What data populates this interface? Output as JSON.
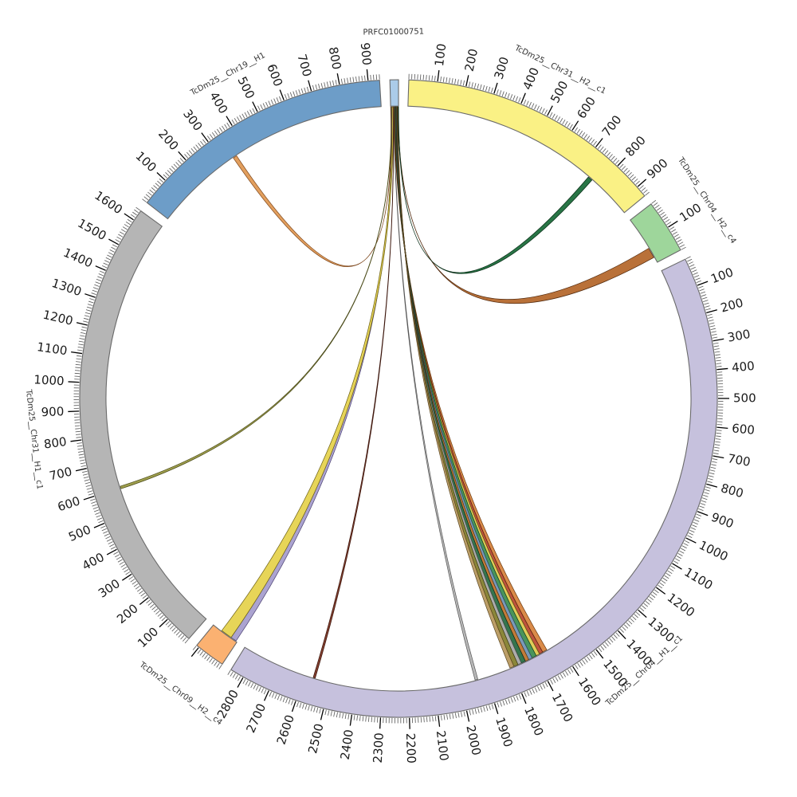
{
  "chart_data": {
    "type": "circos",
    "title": "",
    "layout": {
      "gap_degrees": 1.85,
      "start_bearing": 358.45,
      "minor_tick_units": 10,
      "major_tick_units": 100,
      "band_outer_radius": 400,
      "band_inner_radius": 367,
      "tick_label_radius": 420,
      "segment_label_radius": 460
    },
    "segments": [
      {
        "name": "PRFC01000751",
        "color": "#abcbe8",
        "border": "#6a6a6a",
        "length": 30,
        "ticks": false,
        "tick_labels": []
      },
      {
        "name": "TcDm25__Chr31__H2__c1",
        "color": "#faf185",
        "border": "#6a6a6a",
        "length": 940,
        "ticks": true,
        "tick_labels": [
          100,
          200,
          300,
          400,
          500,
          600,
          700,
          800,
          900
        ]
      },
      {
        "name": "TcDm25__Chr04__H2__c4",
        "color": "#9ed69b",
        "border": "#6a6a6a",
        "length": 190,
        "ticks": true,
        "tick_labels": [
          100
        ]
      },
      {
        "name": "TcDm25__Chr04__H1__c1",
        "color": "#c6c1dd",
        "border": "#6a6a6a",
        "length": 2850,
        "ticks": true,
        "tick_labels": [
          100,
          200,
          300,
          400,
          500,
          600,
          700,
          800,
          900,
          1000,
          1100,
          1200,
          1300,
          1400,
          1500,
          1600,
          1700,
          1800,
          1900,
          2000,
          2100,
          2200,
          2300,
          2400,
          2500,
          2600,
          2700,
          2800
        ]
      },
      {
        "name": "TcDm25__Chr09__H2__c4",
        "color": "#fbb171",
        "border": "#6a6a6a",
        "length": 110,
        "ticks": true,
        "tick_labels": []
      },
      {
        "name": "TcDm25__Chr31__H1__c1",
        "color": "#b5b5b5",
        "border": "#6a6a6a",
        "length": 1640,
        "ticks": true,
        "tick_labels": [
          100,
          200,
          300,
          400,
          500,
          600,
          700,
          800,
          900,
          1000,
          1100,
          1200,
          1300,
          1400,
          1500,
          1600
        ]
      },
      {
        "name": "TcDm25__Chr19__H1",
        "color": "#6d9dc8",
        "border": "#6a6a6a",
        "length": 940,
        "ticks": true,
        "tick_labels": [
          100,
          200,
          300,
          400,
          500,
          600,
          700,
          800,
          900
        ]
      }
    ],
    "links": [
      {
        "source": "PRFC01000751",
        "s0": 0.0,
        "s1": 1.6,
        "target": "TcDm25__Chr19__H1",
        "t0": 340,
        "t1": 355,
        "color": "#e09a55",
        "stroke": "#7a4318"
      },
      {
        "source": "PRFC01000751",
        "s0": 1.6,
        "s1": 2.6,
        "target": "TcDm25__Chr31__H1__c1",
        "t0": 596,
        "t1": 606,
        "color": "#9a9a45",
        "stroke": "#4a4a18"
      },
      {
        "source": "PRFC01000751",
        "s0": 2.6,
        "s1": 4.4,
        "target": "TcDm25__Chr09__H2__c4",
        "t0": 5,
        "t1": 28,
        "color": "#a79ecd",
        "stroke": "#4a4070"
      },
      {
        "source": "PRFC01000751",
        "s0": 4.4,
        "s1": 9.0,
        "target": "TcDm25__Chr09__H2__c4",
        "t0": 28,
        "t1": 72,
        "color": "#e6d34f",
        "stroke": "#6a5e14"
      },
      {
        "source": "PRFC01000751",
        "s0": 9.0,
        "s1": 9.8,
        "target": "TcDm25__Chr04__H1__c1",
        "t0": 2558,
        "t1": 2566,
        "color": "#7a3424",
        "stroke": "#3a140a"
      },
      {
        "source": "PRFC01000751",
        "s0": 9.8,
        "s1": 11.0,
        "target": "TcDm25__Chr04__H1__c1",
        "t0": 1933,
        "t1": 1944,
        "color": "#b4b4b4",
        "stroke": "#555555"
      },
      {
        "source": "PRFC01000751",
        "s0": 11.0,
        "s1": 12.6,
        "target": "TcDm25__Chr04__H1__c1",
        "t0": 1648,
        "t1": 1666,
        "color": "#d8853f",
        "stroke": "#6a3a10"
      },
      {
        "source": "PRFC01000751",
        "s0": 12.6,
        "s1": 14.2,
        "target": "TcDm25__Chr04__H1__c1",
        "t0": 1666,
        "t1": 1680,
        "color": "#bb4b33",
        "stroke": "#551a0e"
      },
      {
        "source": "PRFC01000751",
        "s0": 14.2,
        "s1": 15.8,
        "target": "TcDm25__Chr04__H1__c1",
        "t0": 1680,
        "t1": 1694,
        "color": "#ddca50",
        "stroke": "#5e5414"
      },
      {
        "source": "PRFC01000751",
        "s0": 15.8,
        "s1": 17.4,
        "target": "TcDm25__Chr04__H1__c1",
        "t0": 1694,
        "t1": 1712,
        "color": "#3f8e52",
        "stroke": "#10411f"
      },
      {
        "source": "PRFC01000751",
        "s0": 17.4,
        "s1": 19.0,
        "target": "TcDm25__Chr04__H1__c1",
        "t0": 1712,
        "t1": 1726,
        "color": "#7295b5",
        "stroke": "#2e4a63"
      },
      {
        "source": "PRFC01000751",
        "s0": 19.0,
        "s1": 20.6,
        "target": "TcDm25__Chr04__H1__c1",
        "t0": 1726,
        "t1": 1740,
        "color": "#c0742e",
        "stroke": "#5c330e"
      },
      {
        "source": "PRFC01000751",
        "s0": 20.6,
        "s1": 22.2,
        "target": "TcDm25__Chr04__H1__c1",
        "t0": 1740,
        "t1": 1757,
        "color": "#2a6e44",
        "stroke": "#0c2e1a"
      },
      {
        "source": "PRFC01000751",
        "s0": 22.2,
        "s1": 23.8,
        "target": "TcDm25__Chr04__H1__c1",
        "t0": 1757,
        "t1": 1771,
        "color": "#a8a8a8",
        "stroke": "#4d4d4d"
      },
      {
        "source": "PRFC01000751",
        "s0": 23.8,
        "s1": 25.4,
        "target": "TcDm25__Chr04__H1__c1",
        "t0": 1771,
        "t1": 1788,
        "color": "#85812f",
        "stroke": "#3c3a10"
      },
      {
        "source": "PRFC01000751",
        "s0": 25.4,
        "s1": 27.0,
        "target": "TcDm25__Chr04__H1__c1",
        "t0": 1788,
        "t1": 1804,
        "color": "#b89a60",
        "stroke": "#5a4520"
      },
      {
        "source": "PRFC01000751",
        "s0": 27.0,
        "s1": 28.4,
        "target": "TcDm25__Chr04__H2__c4",
        "t0": 128,
        "t1": 168,
        "color": "#b5692e",
        "stroke": "#50280c"
      },
      {
        "source": "PRFC01000751",
        "s0": 28.4,
        "s1": 30.0,
        "target": "TcDm25__Chr31__H2__c1",
        "t0": 748,
        "t1": 766,
        "color": "#1e6e3c",
        "stroke": "#062a14"
      }
    ]
  }
}
